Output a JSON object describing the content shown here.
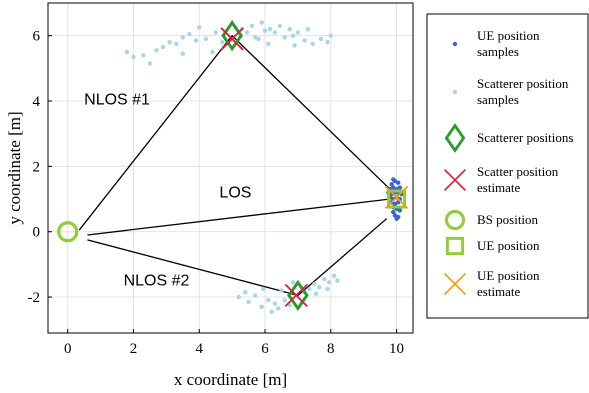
{
  "chart_data": {
    "type": "scatter",
    "xlabel": "x coordinate [m]",
    "ylabel": "y coordinate [m]",
    "xlim": [
      -0.6,
      10.5
    ],
    "ylim": [
      -3.1,
      7.0
    ],
    "xticks": [
      0,
      2,
      4,
      6,
      8,
      10
    ],
    "yticks": [
      -2,
      0,
      2,
      4,
      6
    ],
    "grid": true,
    "legend_position": "right",
    "colors": {
      "ue_samples": "#3a63d6",
      "scatterer_samples": "#a8d6e8",
      "scatterer_positions": "#2a9a2a",
      "scatter_estimate": "#d6213f",
      "bs_position": "#8fce34",
      "ue_position": "#8fce34",
      "ue_estimate": "#f39c12",
      "paths": "#000000"
    },
    "paths": [
      {
        "label": "NLOS #1",
        "label_at": [
          1.5,
          3.9
        ],
        "points": [
          [
            0.35,
            0.05
          ],
          [
            5.0,
            6.0
          ],
          [
            9.8,
            1.3
          ]
        ]
      },
      {
        "label": "LOS",
        "label_at": [
          5.1,
          1.05
        ],
        "points": [
          [
            0.6,
            -0.1
          ],
          [
            9.8,
            1.0
          ]
        ]
      },
      {
        "label": "NLOS #2",
        "label_at": [
          2.7,
          -1.65
        ],
        "points": [
          [
            0.6,
            -0.25
          ],
          [
            7.0,
            -1.95
          ],
          [
            9.7,
            0.4
          ]
        ]
      }
    ],
    "series": [
      {
        "name": "UE position samples",
        "marker": "dot",
        "points": [
          [
            9.85,
            1.45
          ],
          [
            9.9,
            1.6
          ],
          [
            9.95,
            1.55
          ],
          [
            10.05,
            1.5
          ],
          [
            9.8,
            1.3
          ],
          [
            9.9,
            1.35
          ],
          [
            10.0,
            1.3
          ],
          [
            10.1,
            1.35
          ],
          [
            9.75,
            1.2
          ],
          [
            9.85,
            1.15
          ],
          [
            9.95,
            1.2
          ],
          [
            10.05,
            1.2
          ],
          [
            10.15,
            1.15
          ],
          [
            9.8,
            1.05
          ],
          [
            9.9,
            1.0
          ],
          [
            10.0,
            1.05
          ],
          [
            10.1,
            1.0
          ],
          [
            9.85,
            0.9
          ],
          [
            9.95,
            0.85
          ],
          [
            10.05,
            0.9
          ],
          [
            9.9,
            0.75
          ],
          [
            10.0,
            0.7
          ],
          [
            9.95,
            0.5
          ],
          [
            10.05,
            0.45
          ],
          [
            10.0,
            0.4
          ],
          [
            9.9,
            0.6
          ],
          [
            10.1,
            0.65
          ]
        ]
      },
      {
        "name": "Scatterer position samples",
        "marker": "dot",
        "points": [
          [
            1.8,
            5.5
          ],
          [
            2.3,
            5.4
          ],
          [
            2.5,
            5.15
          ],
          [
            2.7,
            5.55
          ],
          [
            2.9,
            5.65
          ],
          [
            3.1,
            5.8
          ],
          [
            3.3,
            5.75
          ],
          [
            3.5,
            5.95
          ],
          [
            3.7,
            6.05
          ],
          [
            3.9,
            5.85
          ],
          [
            4.2,
            5.9
          ],
          [
            4.5,
            6.1
          ],
          [
            4.7,
            5.8
          ],
          [
            5.1,
            6.25
          ],
          [
            5.3,
            6.2
          ],
          [
            5.45,
            6.1
          ],
          [
            5.6,
            6.3
          ],
          [
            5.8,
            5.9
          ],
          [
            5.9,
            6.4
          ],
          [
            6.0,
            6.15
          ],
          [
            6.15,
            6.2
          ],
          [
            6.3,
            6.1
          ],
          [
            6.45,
            6.3
          ],
          [
            6.6,
            5.95
          ],
          [
            6.75,
            6.2
          ],
          [
            6.85,
            6.0
          ],
          [
            7.0,
            6.1
          ],
          [
            7.2,
            5.85
          ],
          [
            7.45,
            5.75
          ],
          [
            7.7,
            5.9
          ],
          [
            7.9,
            5.8
          ],
          [
            8.0,
            6.0
          ],
          [
            2.0,
            5.35
          ],
          [
            3.5,
            5.45
          ],
          [
            4.0,
            6.25
          ],
          [
            5.7,
            5.95
          ],
          [
            6.1,
            5.75
          ],
          [
            7.3,
            6.2
          ],
          [
            4.4,
            5.5
          ],
          [
            6.9,
            5.7
          ],
          [
            5.2,
            -2.0
          ],
          [
            5.5,
            -2.15
          ],
          [
            5.7,
            -1.95
          ],
          [
            5.9,
            -2.3
          ],
          [
            6.1,
            -2.1
          ],
          [
            6.3,
            -2.2
          ],
          [
            6.5,
            -1.8
          ],
          [
            6.6,
            -2.1
          ],
          [
            6.75,
            -2.25
          ],
          [
            7.2,
            -1.85
          ],
          [
            7.35,
            -1.75
          ],
          [
            7.5,
            -1.6
          ],
          [
            7.65,
            -1.7
          ],
          [
            7.8,
            -1.45
          ],
          [
            7.95,
            -1.55
          ],
          [
            8.1,
            -1.35
          ],
          [
            8.2,
            -1.5
          ],
          [
            7.55,
            -1.9
          ],
          [
            6.2,
            -2.45
          ],
          [
            5.95,
            -1.75
          ],
          [
            7.1,
            -2.2
          ],
          [
            6.85,
            -1.55
          ],
          [
            7.9,
            -1.75
          ],
          [
            5.4,
            -1.85
          ],
          [
            6.4,
            -2.35
          ]
        ]
      },
      {
        "name": "Scatterer positions",
        "marker": "diamond",
        "points": [
          [
            5.0,
            6.0
          ],
          [
            7.0,
            -1.95
          ]
        ]
      },
      {
        "name": "Scatter position estimate",
        "marker": "x",
        "points": [
          [
            5.0,
            5.9
          ],
          [
            6.95,
            -1.95
          ]
        ]
      },
      {
        "name": "BS position",
        "marker": "circle",
        "points": [
          [
            0.0,
            0.0
          ]
        ]
      },
      {
        "name": "UE position",
        "marker": "square",
        "points": [
          [
            10.0,
            1.0
          ]
        ]
      },
      {
        "name": "UE position estimate",
        "marker": "x",
        "points": [
          [
            10.0,
            1.05
          ]
        ]
      }
    ],
    "legend": [
      {
        "key": "ue_samples",
        "marker": "dot",
        "label": [
          "UE position",
          "samples"
        ]
      },
      {
        "key": "scatterer_samples",
        "marker": "dot",
        "label": [
          "Scatterer position",
          "samples"
        ]
      },
      {
        "key": "scatterer_positions",
        "marker": "diamond",
        "label": [
          "Scatterer positions"
        ]
      },
      {
        "key": "scatter_estimate",
        "marker": "x",
        "label": [
          "Scatter position",
          "estimate"
        ]
      },
      {
        "key": "bs_position",
        "marker": "circle",
        "label": [
          "BS position"
        ]
      },
      {
        "key": "ue_position",
        "marker": "square",
        "label": [
          "UE position"
        ]
      },
      {
        "key": "ue_estimate",
        "marker": "x",
        "label": [
          "UE position",
          "estimate"
        ]
      }
    ]
  }
}
